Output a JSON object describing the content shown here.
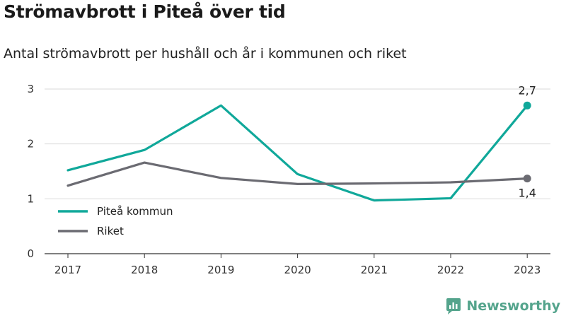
{
  "title": "Strömavbrott i Piteå över tid",
  "subtitle": "Antal strömavbrott per hushåll och år i kommunen och riket",
  "brand": {
    "name": "Newsworthy",
    "color": "#54a48c"
  },
  "chart_data": {
    "type": "line",
    "categories": [
      "2017",
      "2018",
      "2019",
      "2020",
      "2021",
      "2022",
      "2023"
    ],
    "ylim": [
      0,
      3
    ],
    "yticks": [
      "0",
      "1",
      "2",
      "3"
    ],
    "grid": true,
    "legend_position": "bottom-left",
    "series": [
      {
        "name": "Piteå kommun",
        "color": "#10a89a",
        "values": [
          1.52,
          1.89,
          2.7,
          1.45,
          0.97,
          1.01,
          2.7
        ],
        "end_label": "2,7"
      },
      {
        "name": "Riket",
        "color": "#6b6b72",
        "values": [
          1.24,
          1.66,
          1.38,
          1.27,
          1.28,
          1.3,
          1.37
        ],
        "end_label": "1,4"
      }
    ]
  }
}
